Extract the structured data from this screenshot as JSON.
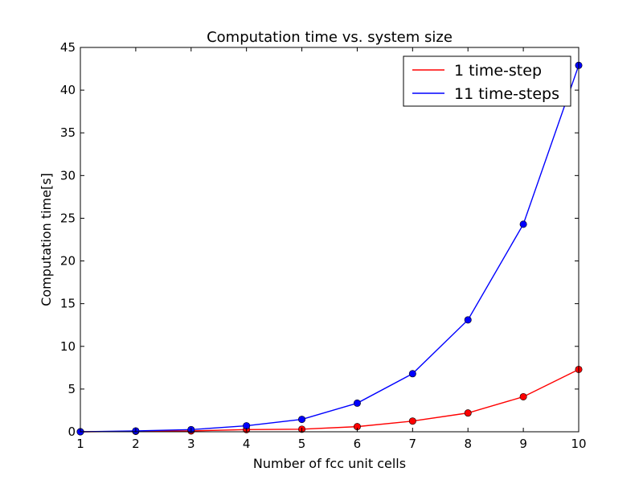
{
  "chart_data": {
    "type": "line",
    "title": "Computation time vs. system size",
    "xlabel": "Number of fcc unit cells",
    "ylabel": "Computation time[s]",
    "xlim": [
      1,
      10
    ],
    "ylim": [
      0,
      45
    ],
    "xticks": [
      1,
      2,
      3,
      4,
      5,
      6,
      7,
      8,
      9,
      10
    ],
    "yticks": [
      0,
      5,
      10,
      15,
      20,
      25,
      30,
      35,
      40,
      45
    ],
    "grid": false,
    "legend_position": "top-right",
    "x": [
      1,
      2,
      3,
      4,
      5,
      6,
      7,
      8,
      9,
      10
    ],
    "series": [
      {
        "name": "1 time-step",
        "color": "#ff0000",
        "values": [
          0.0,
          0.05,
          0.1,
          0.25,
          0.3,
          0.6,
          1.25,
          2.2,
          4.1,
          7.3
        ]
      },
      {
        "name": "11 time-steps",
        "color": "#0000ff",
        "values": [
          0.0,
          0.1,
          0.25,
          0.7,
          1.45,
          3.35,
          6.8,
          13.1,
          24.3,
          42.9
        ]
      }
    ]
  }
}
